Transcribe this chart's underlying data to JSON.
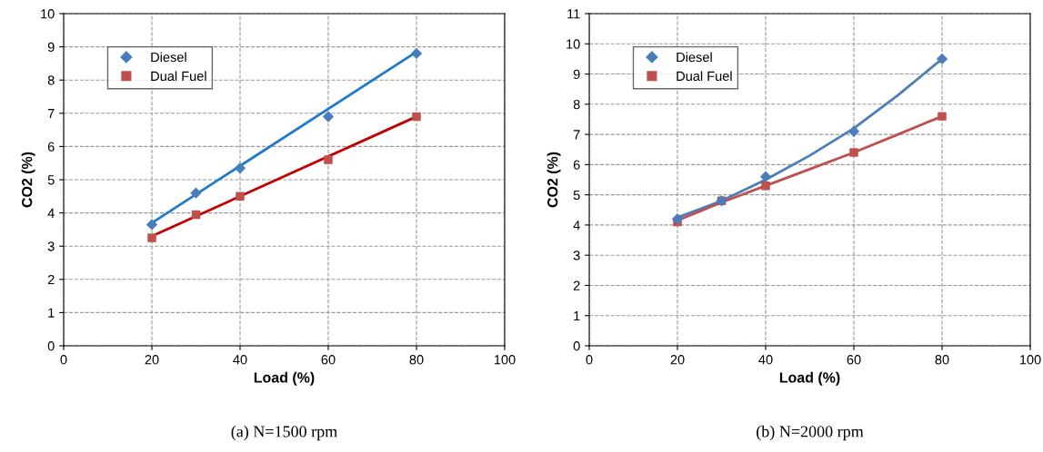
{
  "chart_data": [
    {
      "type": "scatter",
      "xlabel": "Load (%)",
      "ylabel": "CO2 (%)",
      "xlim": [
        0,
        100
      ],
      "xticks": [
        0,
        20,
        40,
        60,
        80,
        100
      ],
      "ylim": [
        0,
        10
      ],
      "yticks": [
        0,
        1,
        2,
        3,
        4,
        5,
        6,
        7,
        8,
        9,
        10
      ],
      "grid": true,
      "legend": "top left",
      "annotations": [
        "(a) N=1500 rpm"
      ],
      "series": [
        {
          "name": "Diesel",
          "type": "scatter",
          "marker": "diamond",
          "color": "#4a7ebb",
          "x": [
            20,
            30,
            40,
            60,
            80
          ],
          "values": [
            3.65,
            4.6,
            5.35,
            6.9,
            8.8
          ]
        },
        {
          "name": "Dual Fuel",
          "type": "scatter",
          "marker": "square",
          "color": "#c0504d",
          "x": [
            20,
            30,
            40,
            60,
            80
          ],
          "values": [
            3.25,
            3.95,
            4.5,
            5.6,
            6.9
          ]
        },
        {
          "type": "line",
          "color": "#1f7bc9",
          "x": [
            20,
            80
          ],
          "values": [
            3.7,
            8.85
          ]
        },
        {
          "type": "line",
          "color": "#c00000",
          "x": [
            20,
            80
          ],
          "values": [
            3.3,
            6.9
          ]
        }
      ]
    },
    {
      "type": "scatter",
      "xlabel": "Load (%)",
      "ylabel": "CO2 (%)",
      "xlim": [
        0,
        100
      ],
      "xticks": [
        0,
        20,
        40,
        60,
        80,
        100
      ],
      "ylim": [
        0,
        11
      ],
      "yticks": [
        0,
        1,
        2,
        3,
        4,
        5,
        6,
        7,
        8,
        9,
        10,
        11
      ],
      "grid": true,
      "legend": "top left",
      "annotations": [
        "(b) N=2000 rpm"
      ],
      "series": [
        {
          "name": "Diesel",
          "type": "scatter",
          "marker": "diamond",
          "color": "#4a7ebb",
          "x": [
            20,
            30,
            40,
            60,
            80
          ],
          "values": [
            4.2,
            4.8,
            5.6,
            7.1,
            9.5
          ]
        },
        {
          "name": "Dual Fuel",
          "type": "scatter",
          "marker": "square",
          "color": "#c0504d",
          "x": [
            20,
            30,
            40,
            60,
            80
          ],
          "values": [
            4.1,
            4.8,
            5.3,
            6.4,
            7.6
          ]
        },
        {
          "type": "line",
          "color": "#4a7ebb",
          "x": [
            20,
            30,
            40,
            50,
            60,
            70,
            80
          ],
          "values": [
            4.25,
            4.8,
            5.5,
            6.3,
            7.2,
            8.3,
            9.5
          ]
        },
        {
          "type": "line",
          "color": "#c0504d",
          "x": [
            20,
            30,
            40,
            50,
            60,
            70,
            80
          ],
          "values": [
            4.15,
            4.75,
            5.3,
            5.85,
            6.4,
            7.0,
            7.6
          ]
        }
      ]
    }
  ]
}
